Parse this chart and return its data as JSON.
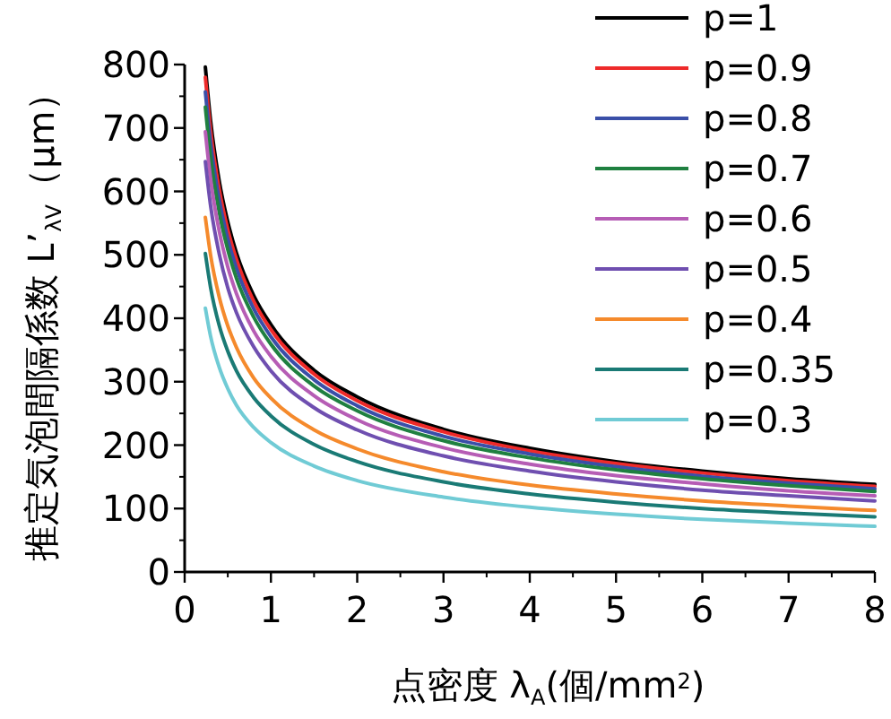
{
  "chart_data": {
    "type": "line",
    "xlabel": "点密度 λ$_{A}$(個/mm$^{2}$)",
    "ylabel": "推定気泡間隔係数 L’$_{λV}$（μm）",
    "x": [
      0.24,
      0.3,
      0.4,
      0.5,
      0.6,
      0.8,
      1,
      1.5,
      2,
      3,
      4,
      5,
      6,
      7,
      8
    ],
    "xlim": [
      0,
      8
    ],
    "xticks": [
      0,
      1,
      2,
      3,
      4,
      5,
      6,
      7,
      8
    ],
    "ylim": [
      0,
      800
    ],
    "yticks": [
      0,
      100,
      200,
      300,
      400,
      500,
      600,
      700,
      800
    ],
    "grid": false,
    "legend": "top right",
    "marker": "none",
    "line_style": "solid",
    "series": [
      {
        "name": "p=1",
        "color": "#000000",
        "values": [
          796,
          712,
          617,
          552,
          503,
          436,
          390,
          318,
          276,
          225,
          195,
          174,
          159,
          147,
          138
        ]
      },
      {
        "name": "p=0.9",
        "color": "#ee2a2a",
        "values": [
          780,
          697,
          604,
          540,
          493,
          427,
          382,
          312,
          270,
          221,
          191,
          171,
          156,
          144,
          135
        ]
      },
      {
        "name": "p=0.8",
        "color": "#3a4fa8",
        "values": [
          757,
          677,
          587,
          525,
          479,
          415,
          371,
          303,
          262,
          214,
          186,
          166,
          151,
          140,
          131
        ]
      },
      {
        "name": "p=0.7",
        "color": "#1f8040",
        "values": [
          733,
          655,
          568,
          508,
          463,
          402,
          359,
          293,
          254,
          207,
          180,
          161,
          147,
          136,
          127
        ]
      },
      {
        "name": "p=0.6",
        "color": "#b65db5",
        "values": [
          694,
          620,
          538,
          481,
          439,
          380,
          340,
          278,
          240,
          196,
          170,
          152,
          139,
          128,
          120
        ]
      },
      {
        "name": "p=0.5",
        "color": "#6f4fb0",
        "values": [
          647,
          578,
          502,
          448,
          409,
          355,
          317,
          259,
          224,
          183,
          159,
          142,
          129,
          120,
          112
        ]
      },
      {
        "name": "p=0.4",
        "color": "#f58a2c",
        "values": [
          559,
          500,
          434,
          388,
          354,
          306,
          274,
          224,
          194,
          158,
          137,
          123,
          112,
          104,
          97
        ]
      },
      {
        "name": "p=0.35",
        "color": "#1a7a75",
        "values": [
          502,
          449,
          389,
          348,
          317,
          275,
          246,
          201,
          174,
          142,
          123,
          110,
          100,
          93,
          87
        ]
      },
      {
        "name": "p=0.3",
        "color": "#70cbd5",
        "values": [
          416,
          372,
          323,
          289,
          263,
          228,
          204,
          167,
          144,
          118,
          102,
          91,
          83,
          77,
          72
        ]
      }
    ]
  }
}
